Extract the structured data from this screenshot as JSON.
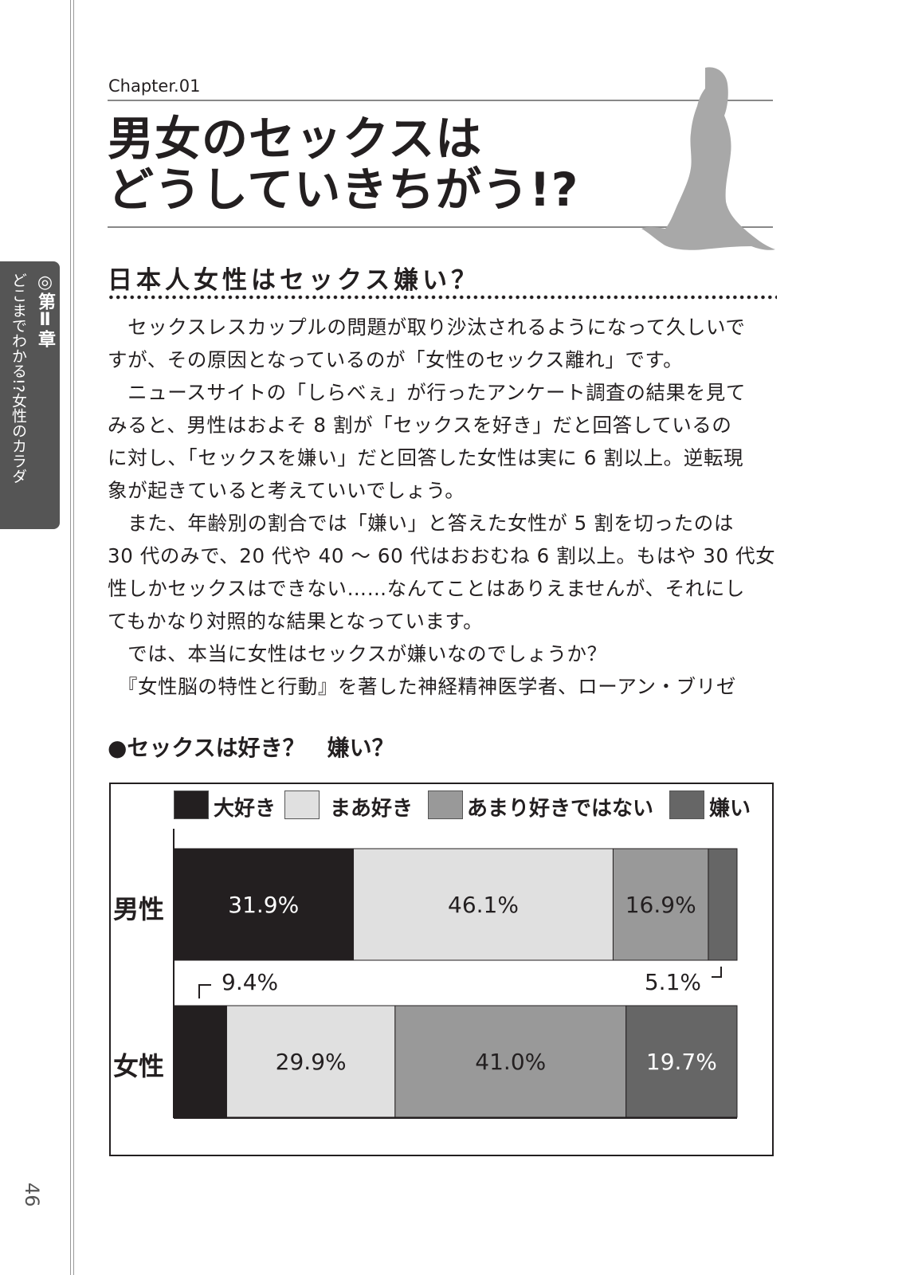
{
  "sidebar": {
    "chapter_mark": "◎第Ⅱ章",
    "section": "どこまでわかる!?女性のカラダ",
    "page_number": "46"
  },
  "header": {
    "chapter": "Chapter.01",
    "title_lines": [
      "男女のセックスは",
      "どうしていきちがう!?"
    ]
  },
  "subheading": "日本人女性はセックス嫌い？",
  "body_lines": [
    "　セックスレスカップルの問題が取り沙汰されるようになって久しいで",
    "すが、その原因となっているのが「女性のセックス離れ」です。",
    "　ニュースサイトの「しらべぇ」が行ったアンケート調査の結果を見て",
    "みると、男性はおよそ 8 割が「セックスを好き」だと回答しているの",
    "に対し、「セックスを嫌い」だと回答した女性は実に 6 割以上。逆転現",
    "象が起きていると考えていいでしょう。",
    "　また、年齢別の割合では「嫌い」と答えた女性が 5 割を切ったのは",
    "30 代のみで、20 代や 40 ～ 60 代はおおむね 6 割以上。もはや 30 代女",
    "性しかセックスはできない……なんてことはありえませんが、それにし",
    "てもかなり対照的な結果となっています。",
    "　では、本当に女性はセックスが嫌いなのでしょうか？",
    "　『女性脳の特性と行動』を著した神経精神医学者、ローアン・ブリゼ"
  ],
  "chart_data": {
    "type": "bar",
    "stacked": true,
    "orientation": "horizontal",
    "title": "●セックスは好き？　嫌い？",
    "categories": [
      "男性",
      "女性"
    ],
    "series": [
      {
        "name": "大好き",
        "values": [
          31.9,
          9.4
        ],
        "color": "#231f20"
      },
      {
        "name": "まあ好き",
        "values": [
          46.1,
          29.9
        ],
        "color": "#e0e0e0"
      },
      {
        "name": "あまり好きではない",
        "values": [
          16.9,
          41.0
        ],
        "color": "#999999"
      },
      {
        "name": "嫌い",
        "values": [
          5.1,
          19.7
        ],
        "color": "#666666"
      }
    ],
    "labels": [
      [
        "31.9%",
        "46.1%",
        "16.9%",
        "5.1%"
      ],
      [
        "9.4%",
        "29.9%",
        "41.0%",
        "19.7%"
      ]
    ],
    "xlim": [
      0,
      100
    ],
    "legend": "top"
  }
}
